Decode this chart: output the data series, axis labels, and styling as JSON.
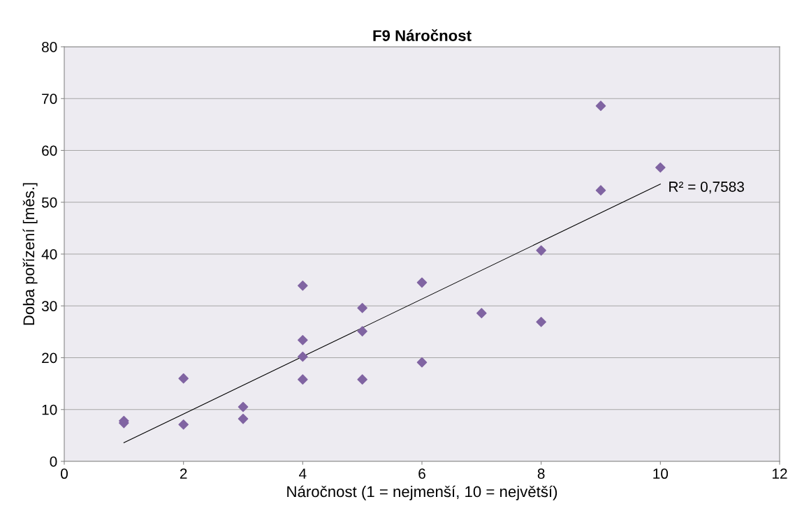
{
  "chart_data": {
    "type": "scatter",
    "title": "F9 Náročnost",
    "xlabel": "Náročnost (1 = nejmenší, 10 = největší)",
    "ylabel": "Doba pořízení [měs.]",
    "xlim": [
      0,
      12
    ],
    "xticks": [
      0,
      2,
      4,
      6,
      8,
      10,
      12
    ],
    "ylim": [
      0,
      80
    ],
    "yticks": [
      0,
      10,
      20,
      30,
      40,
      50,
      60,
      70,
      80
    ],
    "grid": "y",
    "marker": "diamond",
    "legend": false,
    "series": [
      {
        "color": "#8064a2",
        "x": [
          1,
          1,
          2,
          2,
          3,
          3,
          4,
          4,
          4,
          4,
          5,
          5,
          5,
          6,
          6,
          7,
          8,
          8,
          9,
          9,
          10
        ],
        "values": [
          7.8,
          7.4,
          16.0,
          7.1,
          10.5,
          8.2,
          33.9,
          23.4,
          20.2,
          15.8,
          29.6,
          25.1,
          15.8,
          34.5,
          19.1,
          28.6,
          40.7,
          26.9,
          68.6,
          52.3,
          56.7
        ]
      },
      {
        "type": "line",
        "color": "#000000",
        "x": [
          1,
          10
        ],
        "values": [
          3.6,
          53.5
        ],
        "marker": "none"
      }
    ],
    "annotations": [
      {
        "text": "R² = 0,7583",
        "x": 10,
        "y": 53.5
      }
    ]
  }
}
